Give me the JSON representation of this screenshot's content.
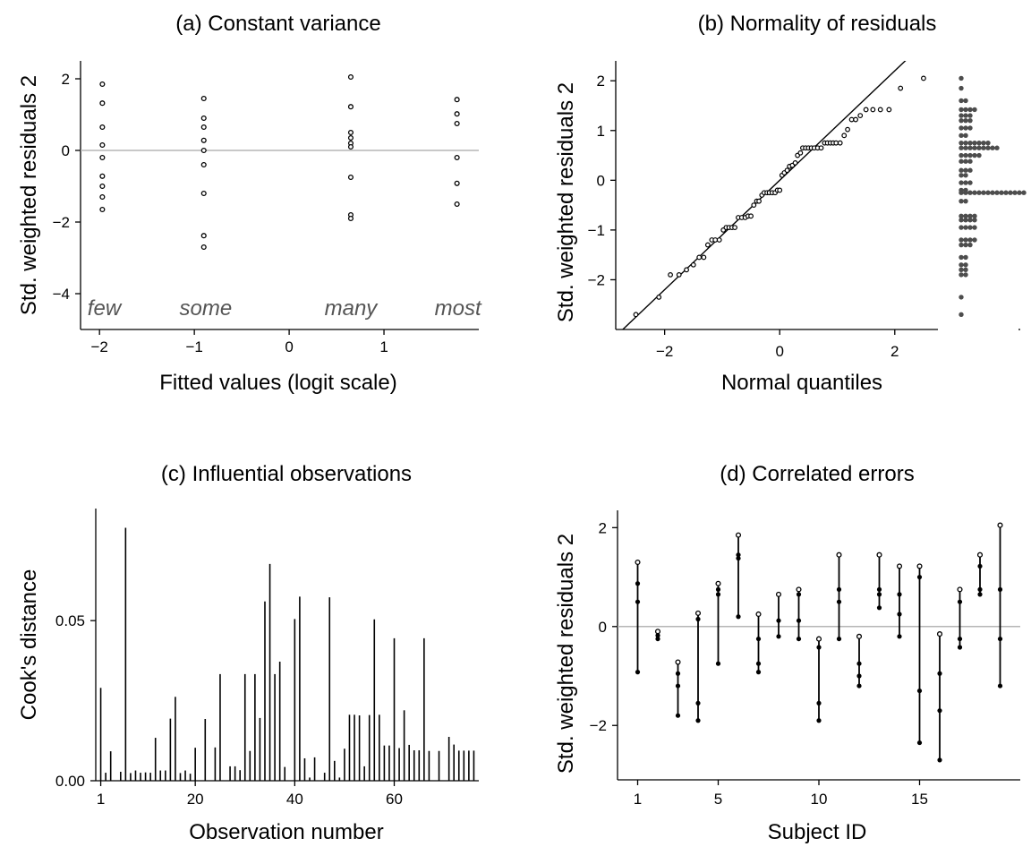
{
  "chart_data": [
    {
      "panel": "a",
      "type": "scatter",
      "title": "(a) Constant variance",
      "xlabel": "Fitted values (logit scale)",
      "ylabel": "Std. weighted residuals 2",
      "xlim": [
        -2.2,
        2.0
      ],
      "ylim": [
        -5.0,
        2.5
      ],
      "xticks": [
        "-2",
        "-1",
        "0",
        "1"
      ],
      "yticks": [
        "-4",
        "-2",
        "0",
        "2"
      ],
      "reference_line_y": 0,
      "grid": false,
      "group_labels": [
        {
          "text": "few",
          "x": -1.95
        },
        {
          "text": "some",
          "x": -0.88
        },
        {
          "text": "many",
          "x": 0.65
        },
        {
          "text": "most",
          "x": 1.78
        }
      ],
      "series": [
        {
          "x": -1.97,
          "values": [
            1.85,
            1.32,
            0.65,
            0.15,
            -0.2,
            -0.72,
            -1.0,
            -1.3,
            -1.65
          ]
        },
        {
          "x": -0.9,
          "values": [
            1.45,
            0.9,
            0.65,
            0.28,
            0.0,
            -0.4,
            -1.2,
            -2.38,
            -2.7
          ]
        },
        {
          "x": 0.65,
          "values": [
            2.05,
            1.22,
            0.5,
            0.35,
            0.2,
            0.1,
            -0.75,
            -1.8,
            -1.9
          ]
        },
        {
          "x": 1.77,
          "values": [
            1.42,
            1.02,
            0.75,
            -0.2,
            -0.92,
            -1.5
          ]
        }
      ]
    },
    {
      "panel": "b",
      "type": "scatter",
      "title": "(b) Normality of residuals",
      "xlabel": "Normal quantiles",
      "ylabel": "Std. weighted residuals 2",
      "xlim": [
        -2.85,
        2.75
      ],
      "ylim": [
        -3.0,
        2.4
      ],
      "xticks": [
        "-2",
        "0",
        "2"
      ],
      "yticks": [
        "-2",
        "-1",
        "0",
        "1",
        "2"
      ],
      "reference_line": {
        "intercept": 0,
        "slope": 1.1
      },
      "grid": false,
      "points": [
        [
          -2.5,
          -2.7
        ],
        [
          -2.1,
          -2.35
        ],
        [
          -1.9,
          -1.9
        ],
        [
          -1.75,
          -1.9
        ],
        [
          -1.62,
          -1.8
        ],
        [
          -1.5,
          -1.7
        ],
        [
          -1.4,
          -1.55
        ],
        [
          -1.32,
          -1.55
        ],
        [
          -1.25,
          -1.3
        ],
        [
          -1.18,
          -1.2
        ],
        [
          -1.12,
          -1.2
        ],
        [
          -1.05,
          -1.2
        ],
        [
          -0.98,
          -1.0
        ],
        [
          -0.93,
          -0.95
        ],
        [
          -0.88,
          -0.95
        ],
        [
          -0.83,
          -0.95
        ],
        [
          -0.78,
          -0.95
        ],
        [
          -0.72,
          -0.75
        ],
        [
          -0.66,
          -0.75
        ],
        [
          -0.6,
          -0.75
        ],
        [
          -0.55,
          -0.72
        ],
        [
          -0.5,
          -0.72
        ],
        [
          -0.45,
          -0.5
        ],
        [
          -0.4,
          -0.42
        ],
        [
          -0.36,
          -0.42
        ],
        [
          -0.31,
          -0.3
        ],
        [
          -0.27,
          -0.25
        ],
        [
          -0.22,
          -0.25
        ],
        [
          -0.18,
          -0.25
        ],
        [
          -0.13,
          -0.25
        ],
        [
          -0.08,
          -0.25
        ],
        [
          -0.04,
          -0.2
        ],
        [
          0.0,
          -0.2
        ],
        [
          0.04,
          0.1
        ],
        [
          0.08,
          0.15
        ],
        [
          0.13,
          0.2
        ],
        [
          0.17,
          0.28
        ],
        [
          0.22,
          0.3
        ],
        [
          0.27,
          0.35
        ],
        [
          0.31,
          0.5
        ],
        [
          0.36,
          0.55
        ],
        [
          0.4,
          0.65
        ],
        [
          0.45,
          0.65
        ],
        [
          0.5,
          0.65
        ],
        [
          0.55,
          0.65
        ],
        [
          0.6,
          0.65
        ],
        [
          0.66,
          0.65
        ],
        [
          0.72,
          0.65
        ],
        [
          0.78,
          0.75
        ],
        [
          0.83,
          0.75
        ],
        [
          0.88,
          0.75
        ],
        [
          0.93,
          0.75
        ],
        [
          0.98,
          0.75
        ],
        [
          1.05,
          0.75
        ],
        [
          1.12,
          0.9
        ],
        [
          1.18,
          1.02
        ],
        [
          1.25,
          1.22
        ],
        [
          1.32,
          1.22
        ],
        [
          1.4,
          1.3
        ],
        [
          1.5,
          1.42
        ],
        [
          1.62,
          1.42
        ],
        [
          1.75,
          1.42
        ],
        [
          1.9,
          1.42
        ],
        [
          2.1,
          1.85
        ],
        [
          2.5,
          2.05
        ]
      ],
      "marginal_dotplot": {
        "bins": [
          {
            "y": 2.05,
            "count": 1
          },
          {
            "y": 1.85,
            "count": 1
          },
          {
            "y": 1.6,
            "count": 2
          },
          {
            "y": 1.42,
            "count": 4
          },
          {
            "y": 1.3,
            "count": 3
          },
          {
            "y": 1.2,
            "count": 3
          },
          {
            "y": 1.05,
            "count": 3
          },
          {
            "y": 0.9,
            "count": 2
          },
          {
            "y": 0.75,
            "count": 7
          },
          {
            "y": 0.65,
            "count": 9
          },
          {
            "y": 0.5,
            "count": 5
          },
          {
            "y": 0.38,
            "count": 3
          },
          {
            "y": 0.2,
            "count": 3
          },
          {
            "y": 0.1,
            "count": 2
          },
          {
            "y": -0.05,
            "count": 3
          },
          {
            "y": -0.2,
            "count": 2
          },
          {
            "y": -0.25,
            "count": 15
          },
          {
            "y": -0.42,
            "count": 2
          },
          {
            "y": -0.72,
            "count": 4
          },
          {
            "y": -0.8,
            "count": 4
          },
          {
            "y": -0.95,
            "count": 4
          },
          {
            "y": -1.2,
            "count": 4
          },
          {
            "y": -1.3,
            "count": 3
          },
          {
            "y": -1.55,
            "count": 2
          },
          {
            "y": -1.7,
            "count": 2
          },
          {
            "y": -1.8,
            "count": 2
          },
          {
            "y": -1.9,
            "count": 2
          },
          {
            "y": -2.35,
            "count": 1
          },
          {
            "y": -2.7,
            "count": 1
          }
        ]
      }
    },
    {
      "panel": "c",
      "type": "bar",
      "title": "(c) Influential observations",
      "xlabel": "Observation number",
      "ylabel": "Cook's distance",
      "xlim": [
        0,
        77
      ],
      "ylim": [
        0,
        0.085
      ],
      "xticks": [
        "1",
        "20",
        "40",
        "60"
      ],
      "yticks": [
        "0.00",
        "0.05"
      ],
      "grid": false,
      "x": [
        1,
        2,
        3,
        4,
        5,
        6,
        7,
        8,
        9,
        10,
        11,
        12,
        13,
        14,
        15,
        16,
        17,
        18,
        19,
        20,
        21,
        22,
        23,
        24,
        25,
        26,
        27,
        28,
        29,
        30,
        31,
        32,
        33,
        34,
        35,
        36,
        37,
        38,
        39,
        40,
        41,
        42,
        43,
        44,
        45,
        46,
        47,
        48,
        49,
        50,
        51,
        52,
        53,
        54,
        55,
        56,
        57,
        58,
        59,
        60,
        61,
        62,
        63,
        64,
        65,
        66,
        67,
        68,
        69,
        70,
        71,
        72,
        73,
        74,
        75,
        76
      ],
      "values": [
        0.029,
        0.0025,
        0.0092,
        0,
        0.0028,
        0.079,
        0.0024,
        0.0032,
        0.0025,
        0.0026,
        0.0025,
        0.0134,
        0.0032,
        0.0032,
        0.0194,
        0.0262,
        0.0024,
        0.0032,
        0.0022,
        0.0103,
        0,
        0.0193,
        0,
        0.0104,
        0.0333,
        0,
        0.0045,
        0.0045,
        0.0033,
        0.0333,
        0.0093,
        0.0333,
        0.0196,
        0.056,
        0.0677,
        0.0333,
        0.0372,
        0.0043,
        0,
        0.0505,
        0.0575,
        0.007,
        0.001,
        0.0073,
        0,
        0.0025,
        0.0573,
        0.0062,
        0.001,
        0.01,
        0.0206,
        0.0206,
        0.0204,
        0.0045,
        0.0205,
        0.0504,
        0.0206,
        0.011,
        0.011,
        0.0445,
        0.0102,
        0.022,
        0.0112,
        0.0095,
        0.0095,
        0.0445,
        0.0093,
        0,
        0.0093,
        0,
        0.0137,
        0.0113,
        0.0094,
        0.0094,
        0.0094,
        0.0094
      ]
    },
    {
      "panel": "d",
      "type": "scatter",
      "title": "(d) Correlated errors",
      "xlabel": "Subject ID",
      "ylabel": "Std. weighted residuals 2",
      "xlim": [
        0,
        20
      ],
      "ylim": [
        -3.1,
        2.35
      ],
      "xticks": [
        "1",
        "5",
        "10",
        "15"
      ],
      "yticks": [
        "-2",
        "0",
        "2"
      ],
      "reference_line_y": 0,
      "grid": false,
      "subjects": [
        {
          "id": 1,
          "values": [
            1.3,
            0.87,
            0.5,
            -0.92
          ]
        },
        {
          "id": 2,
          "values": [
            -0.1,
            -0.18,
            -0.25
          ]
        },
        {
          "id": 3,
          "values": [
            -0.72,
            -0.95,
            -1.2,
            -1.8
          ]
        },
        {
          "id": 4,
          "values": [
            0.27,
            0.15,
            -1.55,
            -1.9
          ]
        },
        {
          "id": 5,
          "values": [
            0.87,
            0.75,
            0.65,
            -0.75
          ]
        },
        {
          "id": 6,
          "values": [
            1.85,
            1.45,
            1.38,
            0.2
          ]
        },
        {
          "id": 7,
          "values": [
            0.25,
            -0.25,
            -0.75,
            -0.92
          ]
        },
        {
          "id": 8,
          "values": [
            0.65,
            0.12,
            -0.2
          ]
        },
        {
          "id": 9,
          "values": [
            0.75,
            0.65,
            0.12,
            -0.25
          ]
        },
        {
          "id": 10,
          "values": [
            -0.25,
            -0.42,
            -1.55,
            -1.9
          ]
        },
        {
          "id": 11,
          "values": [
            1.45,
            0.75,
            0.5,
            -0.25
          ]
        },
        {
          "id": 12,
          "values": [
            -0.2,
            -0.75,
            -1.0,
            -1.2
          ]
        },
        {
          "id": 13,
          "values": [
            1.45,
            0.75,
            0.65,
            0.38
          ]
        },
        {
          "id": 14,
          "values": [
            1.22,
            0.65,
            0.25,
            -0.2
          ]
        },
        {
          "id": 15,
          "values": [
            1.22,
            1.0,
            -1.3,
            -2.35
          ]
        },
        {
          "id": 16,
          "values": [
            -0.15,
            -0.95,
            -1.7,
            -2.7
          ]
        },
        {
          "id": 17,
          "values": [
            0.75,
            0.5,
            -0.25,
            -0.42
          ]
        },
        {
          "id": 18,
          "values": [
            1.45,
            1.22,
            0.75,
            0.65
          ]
        },
        {
          "id": 19,
          "values": [
            2.05,
            0.75,
            -0.25,
            -1.2
          ]
        }
      ]
    }
  ]
}
